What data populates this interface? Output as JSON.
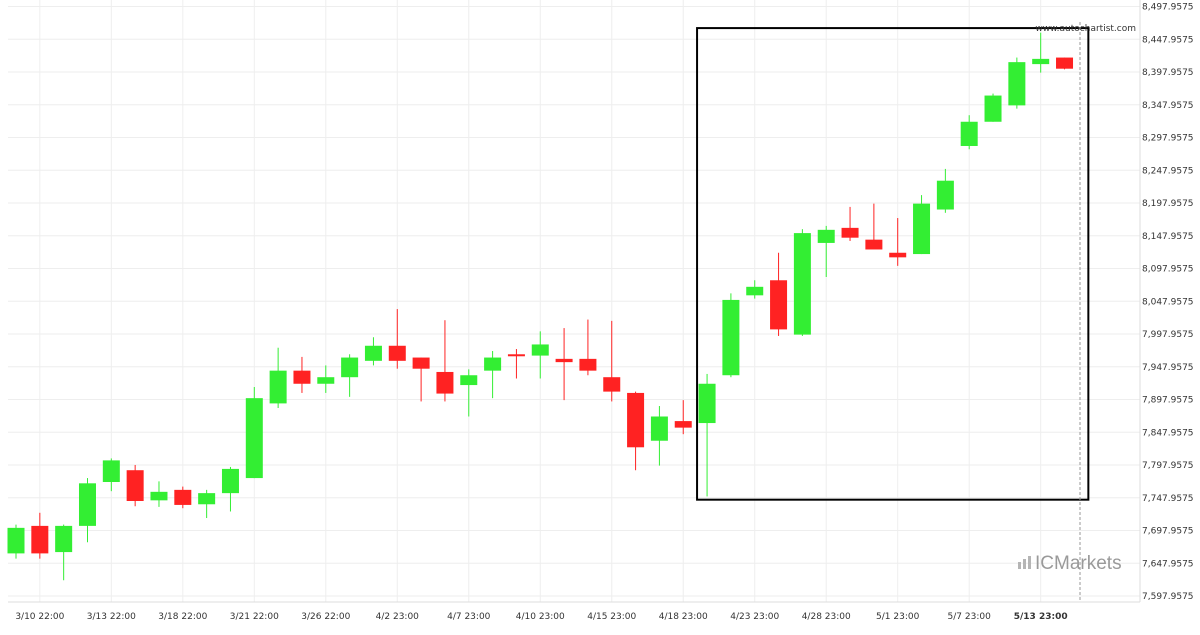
{
  "chart_data": {
    "type": "candlestick",
    "watermark_url": "www.autochartist.com",
    "brand_logo": "ICMarkets",
    "colors": {
      "up": "#33ee33",
      "down": "#ff2222",
      "grid": "#eeeeee",
      "pattern_box": "#000000",
      "current_time_line": "#999999"
    },
    "y_axis": {
      "ticks": [
        "8,497.9575",
        "8,447.9575",
        "8,397.9575",
        "8,347.9575",
        "8,297.9575",
        "8,247.9575",
        "8,197.9575",
        "8,147.9575",
        "8,097.9575",
        "8,047.9575",
        "7,997.9575",
        "7,947.9575",
        "7,897.9575",
        "7,847.9575",
        "7,797.9575",
        "7,747.9575",
        "7,697.9575",
        "7,647.9575",
        "7,597.9575"
      ],
      "range": [
        7580,
        8510
      ]
    },
    "x_axis": {
      "ticks": [
        {
          "label": "3/10 22:00",
          "index": 1
        },
        {
          "label": "3/13 22:00",
          "index": 4
        },
        {
          "label": "3/18 22:00",
          "index": 7
        },
        {
          "label": "3/21 22:00",
          "index": 10
        },
        {
          "label": "3/26 22:00",
          "index": 13
        },
        {
          "label": "4/2 23:00",
          "index": 16
        },
        {
          "label": "4/7 23:00",
          "index": 19
        },
        {
          "label": "4/10 23:00",
          "index": 22
        },
        {
          "label": "4/15 23:00",
          "index": 25
        },
        {
          "label": "4/18 23:00",
          "index": 28
        },
        {
          "label": "4/23 23:00",
          "index": 31
        },
        {
          "label": "4/28 23:00",
          "index": 34
        },
        {
          "label": "5/1 23:00",
          "index": 37
        },
        {
          "label": "5/7 23:00",
          "index": 40
        },
        {
          "label": "5/13 23:00",
          "index": 43,
          "bold": true
        }
      ]
    },
    "candles": [
      {
        "o": 7663,
        "h": 7707,
        "l": 7655,
        "c": 7702
      },
      {
        "o": 7705,
        "h": 7725,
        "l": 7655,
        "c": 7663
      },
      {
        "o": 7665,
        "h": 7707,
        "l": 7622,
        "c": 7705
      },
      {
        "o": 7705,
        "h": 7778,
        "l": 7680,
        "c": 7770
      },
      {
        "o": 7772,
        "h": 7808,
        "l": 7758,
        "c": 7805
      },
      {
        "o": 7790,
        "h": 7798,
        "l": 7735,
        "c": 7743
      },
      {
        "o": 7744,
        "h": 7773,
        "l": 7734,
        "c": 7757
      },
      {
        "o": 7760,
        "h": 7765,
        "l": 7732,
        "c": 7737
      },
      {
        "o": 7738,
        "h": 7760,
        "l": 7717,
        "c": 7755
      },
      {
        "o": 7755,
        "h": 7795,
        "l": 7727,
        "c": 7792
      },
      {
        "o": 7778,
        "h": 7917,
        "l": 7778,
        "c": 7900
      },
      {
        "o": 7892,
        "h": 7977,
        "l": 7885,
        "c": 7942
      },
      {
        "o": 7942,
        "h": 7963,
        "l": 7908,
        "c": 7922
      },
      {
        "o": 7922,
        "h": 7950,
        "l": 7908,
        "c": 7932
      },
      {
        "o": 7932,
        "h": 7967,
        "l": 7902,
        "c": 7962
      },
      {
        "o": 7957,
        "h": 7993,
        "l": 7950,
        "c": 7980
      },
      {
        "o": 7980,
        "h": 8036,
        "l": 7945,
        "c": 7957
      },
      {
        "o": 7962,
        "h": 7962,
        "l": 7895,
        "c": 7945
      },
      {
        "o": 7940,
        "h": 8019,
        "l": 7895,
        "c": 7907
      },
      {
        "o": 7920,
        "h": 7944,
        "l": 7872,
        "c": 7935
      },
      {
        "o": 7942,
        "h": 7972,
        "l": 7900,
        "c": 7962
      },
      {
        "o": 7967,
        "h": 7975,
        "l": 7930,
        "c": 7965
      },
      {
        "o": 7965,
        "h": 8002,
        "l": 7930,
        "c": 7982
      },
      {
        "o": 7960,
        "h": 8007,
        "l": 7897,
        "c": 7955
      },
      {
        "o": 7960,
        "h": 8020,
        "l": 7935,
        "c": 7942
      },
      {
        "o": 7932,
        "h": 8018,
        "l": 7895,
        "c": 7910
      },
      {
        "o": 7908,
        "h": 7910,
        "l": 7790,
        "c": 7825
      },
      {
        "o": 7835,
        "h": 7888,
        "l": 7797,
        "c": 7872
      },
      {
        "o": 7865,
        "h": 7897,
        "l": 7845,
        "c": 7855
      },
      {
        "o": 7862,
        "h": 7937,
        "l": 7750,
        "c": 7922
      },
      {
        "o": 7935,
        "h": 8060,
        "l": 7932,
        "c": 8050
      },
      {
        "o": 8057,
        "h": 8080,
        "l": 8052,
        "c": 8070
      },
      {
        "o": 8080,
        "h": 8122,
        "l": 7995,
        "c": 8005
      },
      {
        "o": 7997,
        "h": 8158,
        "l": 7995,
        "c": 8152
      },
      {
        "o": 8137,
        "h": 8163,
        "l": 8085,
        "c": 8157
      },
      {
        "o": 8160,
        "h": 8192,
        "l": 8140,
        "c": 8145
      },
      {
        "o": 8142,
        "h": 8197,
        "l": 8128,
        "c": 8127
      },
      {
        "o": 8122,
        "h": 8175,
        "l": 8102,
        "c": 8115
      },
      {
        "o": 8120,
        "h": 8210,
        "l": 8120,
        "c": 8197
      },
      {
        "o": 8188,
        "h": 8250,
        "l": 8183,
        "c": 8232
      },
      {
        "o": 8285,
        "h": 8332,
        "l": 8280,
        "c": 8322
      },
      {
        "o": 8322,
        "h": 8365,
        "l": 8322,
        "c": 8362
      },
      {
        "o": 8347,
        "h": 8420,
        "l": 8342,
        "c": 8413
      },
      {
        "o": 8410,
        "h": 8458,
        "l": 8397,
        "c": 8418
      },
      {
        "o": 8420,
        "h": 8420,
        "l": 8402,
        "c": 8403
      }
    ],
    "pattern_box": {
      "start_index": 28.58,
      "end_index": 45,
      "top": 8465,
      "bottom": 7745
    },
    "current_time_index": 44.65
  }
}
